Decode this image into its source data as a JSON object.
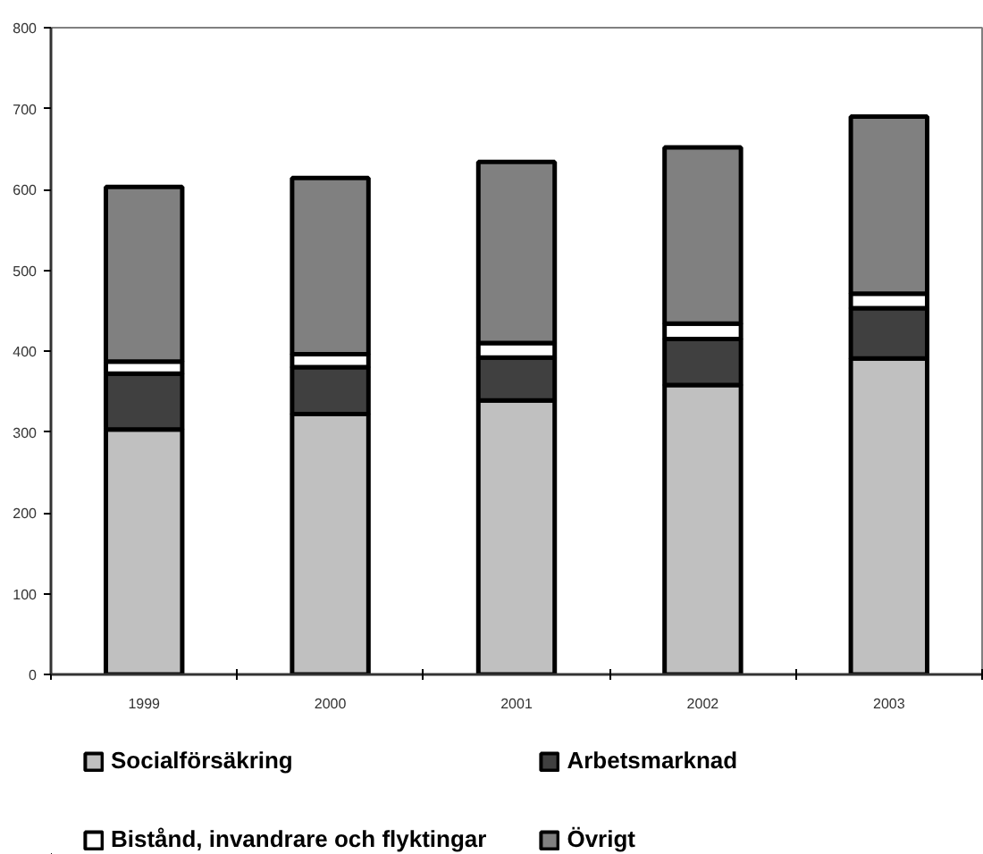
{
  "chart_data": {
    "type": "bar",
    "stacked": true,
    "grid": false,
    "legend": "bottom",
    "categories": [
      "1999",
      "2000",
      "2001",
      "2002",
      "2003"
    ],
    "series": [
      {
        "name": "Socialförsäkring",
        "color": "#c0c0c0",
        "values": [
          303,
          322,
          339,
          358,
          391
        ]
      },
      {
        "name": "Arbetsmarknad",
        "color": "#404040",
        "values": [
          69,
          58,
          53,
          57,
          62
        ]
      },
      {
        "name": "Bistånd, invandrare och flyktingar",
        "color": "#ffffff",
        "values": [
          15,
          16,
          18,
          19,
          18
        ]
      },
      {
        "name": "Övrigt",
        "color": "#808080",
        "values": [
          216,
          218,
          224,
          218,
          219
        ]
      }
    ],
    "ylim": [
      0,
      800
    ],
    "yticks": [
      0,
      100,
      200,
      300,
      400,
      500,
      600,
      700,
      800
    ]
  }
}
